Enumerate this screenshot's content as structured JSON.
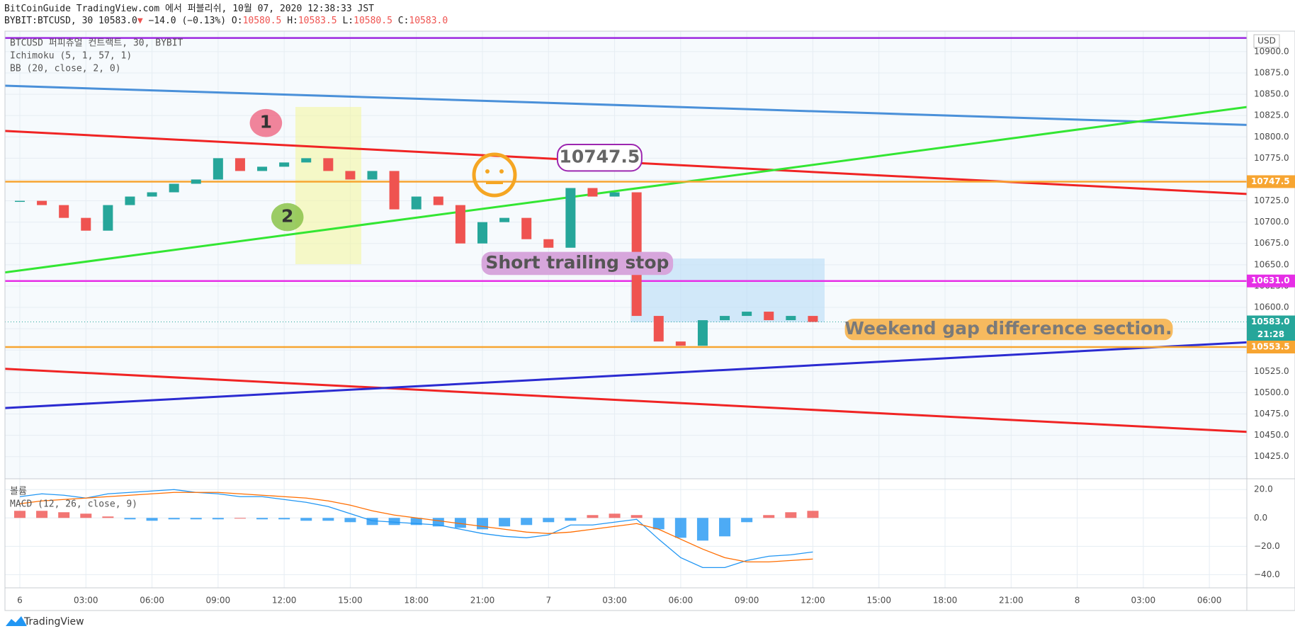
{
  "header": {
    "publisher": "BitCoinGuide TradingView.com 에서 퍼블리쉬, 10월 07, 2020 12:38:33 JST",
    "symbol": "BYBIT:BTCUSD, 30 10583.0",
    "change_arrow": "▼",
    "change": "−14.0 (−0.13%)",
    "ohlc": [
      {
        "key": "O:",
        "value": "10580.5"
      },
      {
        "key": "H:",
        "value": "10583.5"
      },
      {
        "key": "L:",
        "value": "10580.5"
      },
      {
        "key": "C:",
        "value": "10583.0"
      }
    ]
  },
  "legend": [
    "BTCUSD 퍼피츄얼 컨트랙트, 30, BYBIT",
    "Ichimoku (5, 1, 57, 1)",
    "BB (20, close, 2, 0)"
  ],
  "currency": "USD",
  "footer": "TradingView",
  "chart_data": [
    {
      "type": "candlestick",
      "up_color": "#26a69a",
      "down_color": "#ef5350",
      "x": [
        0,
        1,
        2,
        3,
        4,
        5,
        6,
        7,
        8,
        9,
        10,
        11,
        12,
        13,
        14,
        15,
        16,
        17,
        18,
        19,
        20,
        21,
        22,
        23,
        24,
        25,
        26,
        27,
        28,
        29,
        30,
        31,
        32,
        33,
        34,
        35,
        36
      ],
      "closes": [
        10725,
        10720,
        10705,
        10690,
        10720,
        10730,
        10735,
        10745,
        10750,
        10775,
        10760,
        10765,
        10770,
        10775,
        10760,
        10750,
        10760,
        10715,
        10730,
        10720,
        10675,
        10700,
        10705,
        10680,
        10670,
        10740,
        10730,
        10735,
        10590,
        10560,
        10555,
        10585,
        10590,
        10595,
        10585,
        10590,
        10583
      ],
      "xlim": [
        -0.675,
        55.7
      ],
      "xticks": [
        {
          "value": 0,
          "label": "6"
        },
        {
          "value": 3,
          "label": "03:00"
        },
        {
          "value": 6,
          "label": "06:00"
        },
        {
          "value": 9,
          "label": "09:00"
        },
        {
          "value": 12,
          "label": "12:00"
        },
        {
          "value": 15,
          "label": "15:00"
        },
        {
          "value": 18,
          "label": "18:00"
        },
        {
          "value": 21,
          "label": "21:00"
        },
        {
          "value": 24,
          "label": "7"
        },
        {
          "value": 27,
          "label": "03:00"
        },
        {
          "value": 30,
          "label": "06:00"
        },
        {
          "value": 33,
          "label": "09:00"
        },
        {
          "value": 36,
          "label": "12:00"
        },
        {
          "value": 39,
          "label": "15:00"
        },
        {
          "value": 42,
          "label": "18:00"
        },
        {
          "value": 45,
          "label": "21:00"
        },
        {
          "value": 48,
          "label": "8"
        },
        {
          "value": 51,
          "label": "03:00"
        },
        {
          "value": 54,
          "label": "06:00"
        }
      ],
      "ylim": [
        10399,
        10924
      ],
      "yticks": [
        {
          "value": 10425,
          "label": "10425.0"
        },
        {
          "value": 10450,
          "label": "10450.0"
        },
        {
          "value": 10475,
          "label": "10475.0"
        },
        {
          "value": 10500,
          "label": "10500.0"
        },
        {
          "value": 10525,
          "label": "10525.0"
        },
        {
          "value": 10550,
          "label": "10550.0"
        },
        {
          "value": 10575,
          "label": "10575.0"
        },
        {
          "value": 10600,
          "label": "10600.0"
        },
        {
          "value": 10625,
          "label": "10625.0"
        },
        {
          "value": 10650,
          "label": "10650.0"
        },
        {
          "value": 10675,
          "label": "10675.0"
        },
        {
          "value": 10700,
          "label": "10700.0"
        },
        {
          "value": 10725,
          "label": "10725.0"
        },
        {
          "value": 10750,
          "label": "10750.0"
        },
        {
          "value": 10775,
          "label": "10775.0"
        },
        {
          "value": 10800,
          "label": "10800.0"
        },
        {
          "value": 10825,
          "label": "10825.0"
        },
        {
          "value": 10850,
          "label": "10850.0"
        },
        {
          "value": 10875,
          "label": "10875.0"
        },
        {
          "value": 10900,
          "label": "10900.0"
        }
      ],
      "grid": true,
      "levels": [
        {
          "value": 10916,
          "color": "#9c27e0"
        },
        {
          "value": 10747.5,
          "label": "10747.5",
          "color": "#f7a531"
        },
        {
          "value": 10631,
          "label": "10631.0",
          "color": "#e62ee6"
        },
        {
          "value": 10583,
          "label": "10583.0",
          "color": "#26a69a",
          "style": "dotted"
        },
        {
          "value": 10553.5,
          "label": "10553.5",
          "color": "#f7a531"
        }
      ],
      "countdown": "21:28",
      "trend_lines": [
        {
          "x": [
            -0.675,
            55.7
          ],
          "y": [
            10860,
            10814
          ],
          "color": "#4a90d9"
        },
        {
          "x": [
            -0.675,
            55.7
          ],
          "y": [
            10807,
            10733
          ],
          "color": "#f02424"
        },
        {
          "x": [
            -0.675,
            55.7
          ],
          "y": [
            10641,
            10835
          ],
          "color": "#33e633"
        },
        {
          "x": [
            -0.675,
            55.7
          ],
          "y": [
            10528,
            10454
          ],
          "color": "#f02424"
        },
        {
          "x": [
            -0.675,
            55.7
          ],
          "y": [
            10482,
            10559
          ],
          "color": "#2b2bd1"
        }
      ],
      "annotations": [
        {
          "text": "1"
        },
        {
          "text": "2"
        },
        {
          "text": "10747.5"
        },
        {
          "text": "Short trailing stop"
        },
        {
          "text": "Weekend gap difference section."
        }
      ]
    },
    {
      "type": "macd",
      "title": "MACD (12, 26, close, 9)",
      "volume_label": "볼륨",
      "x": [
        0,
        1,
        2,
        3,
        4,
        5,
        6,
        7,
        8,
        9,
        10,
        11,
        12,
        13,
        14,
        15,
        16,
        17,
        18,
        19,
        20,
        21,
        22,
        23,
        24,
        25,
        26,
        27,
        28,
        29,
        30,
        31,
        32,
        33,
        34,
        35,
        36
      ],
      "histogram": [
        5,
        5,
        4,
        3,
        1,
        -1,
        -2,
        -1,
        -1,
        -1,
        0,
        -1,
        -1,
        -2,
        -2,
        -3,
        -5,
        -5,
        -5,
        -6,
        -7,
        -8,
        -6,
        -5,
        -3,
        -2,
        2,
        3,
        2,
        -8,
        -14,
        -16,
        -13,
        -3,
        2,
        4,
        5
      ],
      "macd": [
        15,
        17,
        16,
        14,
        17,
        18,
        19,
        20,
        18,
        17,
        15,
        15,
        13,
        11,
        8,
        3,
        -2,
        -3,
        -4,
        -5,
        -8,
        -11,
        -13,
        -14,
        -12,
        -5,
        -5,
        -3,
        -1,
        -15,
        -28,
        -35,
        -35,
        -30,
        -27,
        -26,
        -24
      ],
      "signal": [
        10,
        12,
        13,
        14,
        15,
        16,
        17,
        18,
        18,
        18,
        17,
        16,
        15,
        14,
        12,
        9,
        5,
        2,
        0,
        -2,
        -4,
        -6,
        -8,
        -10,
        -11,
        -10,
        -8,
        -6,
        -4,
        -8,
        -15,
        -22,
        -28,
        -31,
        -31,
        -30,
        -29
      ],
      "positive_color": "#ef5350",
      "negative_color": "#2196f3",
      "macd_color": "#2196f3",
      "signal_color": "#ff6d00",
      "ylim": [
        -49.3,
        27.6
      ],
      "yticks": [
        {
          "value": 20,
          "label": "20.0"
        },
        {
          "value": 0,
          "label": "0.0"
        },
        {
          "value": -20,
          "label": "−20.0"
        },
        {
          "value": -40,
          "label": "−40.0"
        }
      ]
    }
  ]
}
